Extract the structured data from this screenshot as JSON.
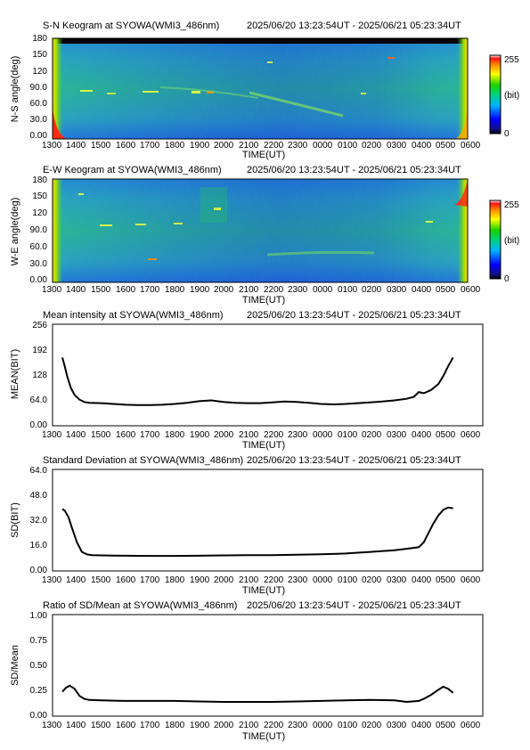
{
  "chart_data": [
    {
      "type": "heatmap",
      "title": "S-N Keogram at SYOWA(WMI3_486nm)",
      "time_range": "2025/06/20 13:23:54UT - 2025/06/21 05:23:34UT",
      "xlabel": "TIME(UT)",
      "ylabel": "N-S angle(deg)",
      "x_ticks": [
        "1300",
        "1400",
        "1500",
        "1600",
        "1700",
        "1800",
        "1900",
        "2000",
        "2100",
        "2200",
        "2300",
        "0000",
        "0100",
        "0200",
        "0300",
        "0400",
        "0500",
        "0600"
      ],
      "y_ticks": [
        "0.00",
        "30.0",
        "60.0",
        "90.0",
        "120",
        "150",
        "180"
      ],
      "ylim": [
        0,
        180
      ],
      "colorbar": {
        "min_label": "0",
        "max_label": "255",
        "unit": "(bit)"
      },
      "data_span": [
        "1324",
        "0523"
      ]
    },
    {
      "type": "heatmap",
      "title": "E-W Keogram at SYOWA(WMI3_486nm)",
      "time_range": "2025/06/20 13:23:54UT - 2025/06/21 05:23:34UT",
      "xlabel": "TIME(UT)",
      "ylabel": "W-E angle(deg)",
      "x_ticks": [
        "1300",
        "1400",
        "1500",
        "1600",
        "1700",
        "1800",
        "1900",
        "2000",
        "2100",
        "2200",
        "2300",
        "0000",
        "0100",
        "0200",
        "0300",
        "0400",
        "0500",
        "0600"
      ],
      "y_ticks": [
        "0.00",
        "30.0",
        "60.0",
        "90.0",
        "120",
        "150",
        "180"
      ],
      "ylim": [
        0,
        180
      ],
      "colorbar": {
        "min_label": "0",
        "max_label": "255",
        "unit": "(bit)"
      },
      "data_span": [
        "1324",
        "0523"
      ]
    },
    {
      "type": "line",
      "title": "Mean intensity at SYOWA(WMI3_486nm)",
      "time_range": "2025/06/20 13:23:54UT - 2025/06/21 05:23:34UT",
      "xlabel": "TIME(UT)",
      "ylabel": "MEAN(BIT)",
      "x_ticks": [
        "1300",
        "1400",
        "1500",
        "1600",
        "1700",
        "1800",
        "1900",
        "2000",
        "2100",
        "2200",
        "2300",
        "0000",
        "0100",
        "0200",
        "0300",
        "0400",
        "0500",
        "0600"
      ],
      "y_ticks": [
        "0.00",
        "64.0",
        "128",
        "192",
        "256"
      ],
      "ylim": [
        0,
        256
      ],
      "x_hours_since_1300": [
        0.4,
        0.5,
        0.6,
        0.75,
        0.9,
        1.1,
        1.3,
        1.5,
        2,
        2.5,
        3,
        3.5,
        4,
        4.5,
        5,
        5.5,
        6,
        6.5,
        7,
        7.5,
        8,
        8.5,
        9,
        9.5,
        10,
        10.5,
        11,
        11.5,
        12,
        12.5,
        13,
        13.5,
        14,
        14.5,
        14.8,
        15,
        15.2,
        15.5,
        15.8,
        16,
        16.2,
        16.4
      ],
      "values": [
        172,
        150,
        125,
        95,
        78,
        66,
        60,
        58,
        57,
        55,
        53,
        52,
        52,
        53,
        55,
        58,
        62,
        64,
        60,
        58,
        57,
        57,
        59,
        61,
        60,
        58,
        55,
        54,
        55,
        57,
        59,
        61,
        64,
        68,
        73,
        85,
        82,
        90,
        105,
        125,
        150,
        172
      ]
    },
    {
      "type": "line",
      "title": "Standard Deviation at SYOWA(WMI3_486nm)",
      "time_range": "2025/06/20 13:23:54UT - 2025/06/21 05:23:34UT",
      "xlabel": "TIME(UT)",
      "ylabel": "SD(BIT)",
      "x_ticks": [
        "1300",
        "1400",
        "1500",
        "1600",
        "1700",
        "1800",
        "1900",
        "2000",
        "2100",
        "2200",
        "2300",
        "0000",
        "0100",
        "0200",
        "0300",
        "0400",
        "0500",
        "0600"
      ],
      "y_ticks": [
        "0.00",
        "16.0",
        "32.0",
        "48.0",
        "64.0"
      ],
      "ylim": [
        0,
        64
      ],
      "x_hours_since_1300": [
        0.4,
        0.5,
        0.65,
        0.8,
        1,
        1.2,
        1.4,
        1.6,
        2,
        3,
        4,
        5,
        6,
        7,
        8,
        9,
        10,
        11,
        12,
        13,
        14,
        14.5,
        15,
        15.2,
        15.4,
        15.6,
        15.8,
        16,
        16.2,
        16.4
      ],
      "values": [
        39,
        38,
        34,
        27,
        18,
        12,
        10.5,
        10,
        9.8,
        9.6,
        9.5,
        9.5,
        9.6,
        9.8,
        10,
        10,
        10.2,
        10.5,
        11,
        12,
        13,
        14,
        15,
        18,
        24,
        30,
        35,
        38.5,
        40,
        39.5
      ]
    },
    {
      "type": "line",
      "title": "Ratio of SD/Mean at SYOWA(WMI3_486nm)",
      "time_range": "2025/06/20 13:23:54UT - 2025/06/21 05:23:34UT",
      "xlabel": "TIME(UT)",
      "ylabel": "SD/Mean",
      "x_ticks": [
        "1300",
        "1400",
        "1500",
        "1600",
        "1700",
        "1800",
        "1900",
        "2000",
        "2100",
        "2200",
        "2300",
        "0000",
        "0100",
        "0200",
        "0300",
        "0400",
        "0500",
        "0600"
      ],
      "y_ticks": [
        "0.00",
        "0.25",
        "0.50",
        "0.75",
        "1.00"
      ],
      "ylim": [
        0,
        1
      ],
      "x_hours_since_1300": [
        0.4,
        0.55,
        0.7,
        0.9,
        1.1,
        1.3,
        1.5,
        2,
        3,
        4,
        5,
        6,
        7,
        8,
        9,
        10,
        11,
        12,
        13,
        14,
        14.5,
        15,
        15.2,
        15.5,
        15.8,
        16,
        16.2,
        16.4
      ],
      "values": [
        0.24,
        0.28,
        0.3,
        0.27,
        0.2,
        0.17,
        0.16,
        0.155,
        0.15,
        0.15,
        0.15,
        0.145,
        0.14,
        0.14,
        0.14,
        0.145,
        0.15,
        0.155,
        0.16,
        0.155,
        0.14,
        0.15,
        0.17,
        0.21,
        0.26,
        0.29,
        0.27,
        0.23
      ]
    }
  ]
}
